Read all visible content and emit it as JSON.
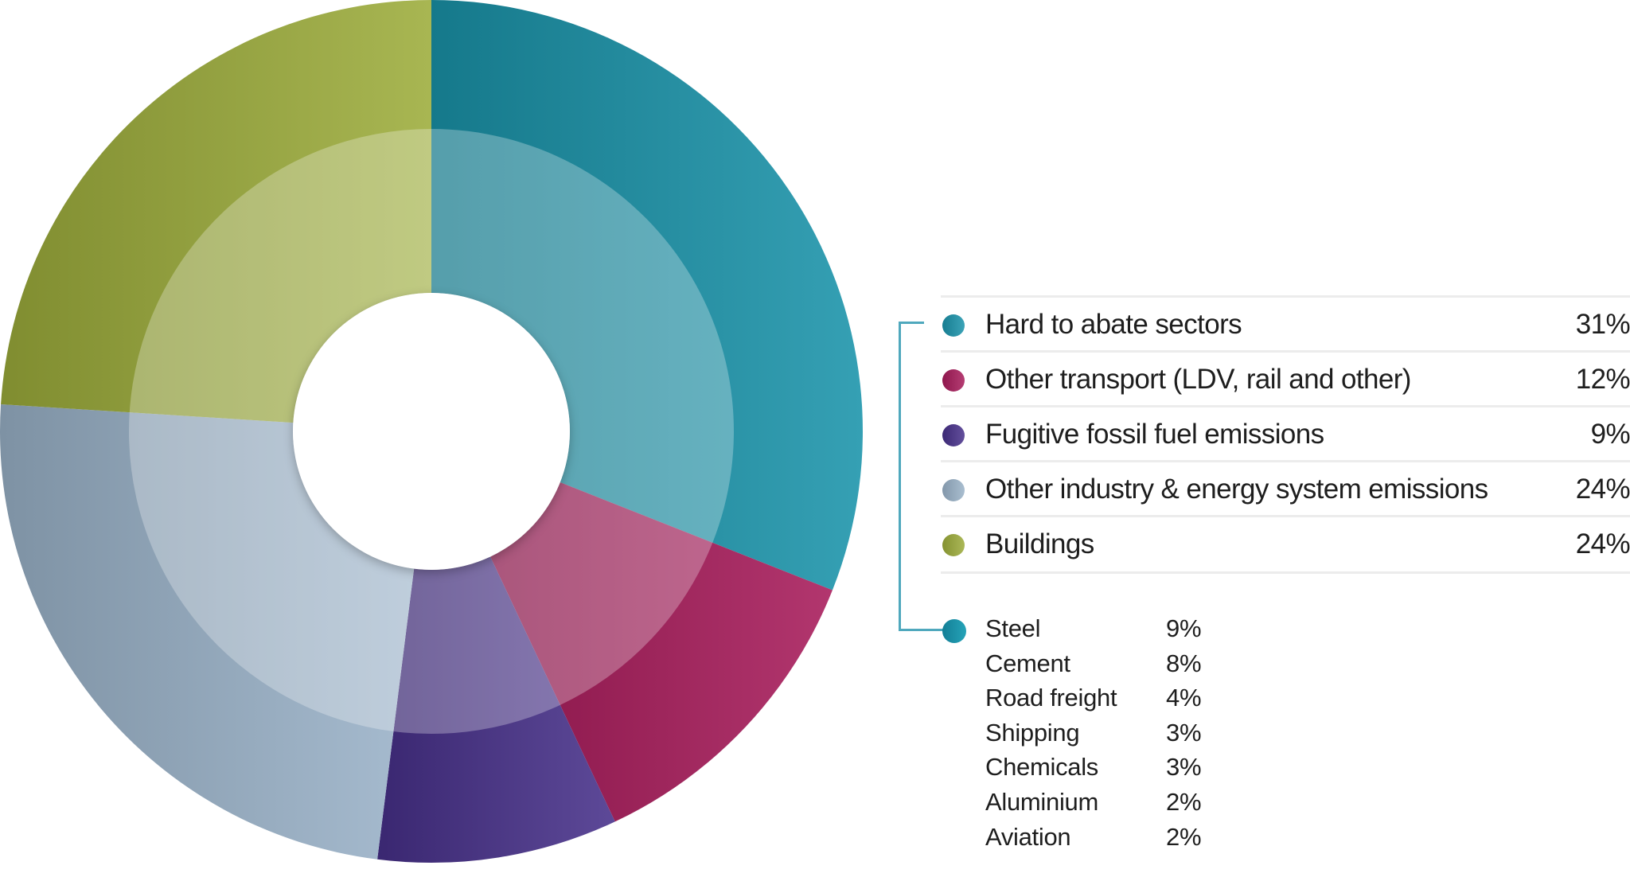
{
  "chart_data": {
    "type": "pie",
    "variant": "donut",
    "start": "top",
    "direction": "clockwise",
    "categories": [
      "Hard to abate sectors",
      "Other transport (LDV, rail and other)",
      "Fugitive fossil fuel emissions",
      "Other industry & energy system emissions",
      "Buildings"
    ],
    "values": [
      31,
      12,
      9,
      24,
      24
    ],
    "labels": [
      "31%",
      "12%",
      "9%",
      "24%",
      "24%"
    ],
    "colors": [
      "#1a93aa",
      "#a81b5a",
      "#47308a",
      "#9ab2c8",
      "#9cac3a"
    ],
    "legend_placement": "right",
    "breakdown": {
      "parent": "Hard to abate sectors",
      "items": [
        {
          "label": "Steel",
          "value": "9%"
        },
        {
          "label": "Cement",
          "value": "8%"
        },
        {
          "label": "Road freight",
          "value": "4%"
        },
        {
          "label": "Shipping",
          "value": "3%"
        },
        {
          "label": "Chemicals",
          "value": "3%"
        },
        {
          "label": "Aluminium",
          "value": "2%"
        },
        {
          "label": "Aviation",
          "value": "2%"
        }
      ]
    }
  }
}
